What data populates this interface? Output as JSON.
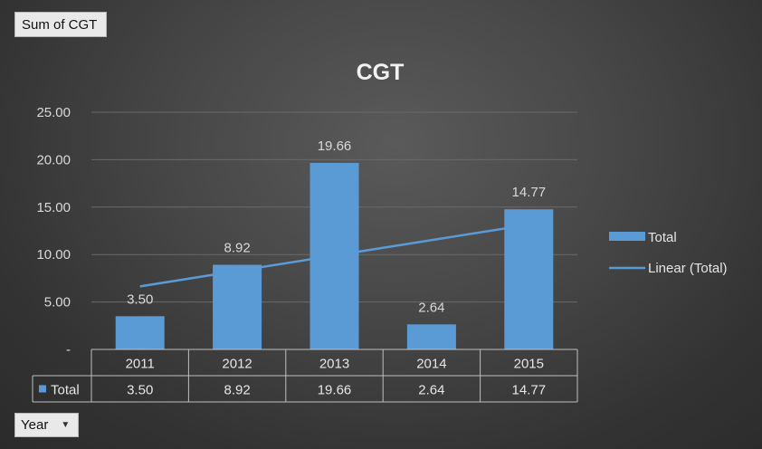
{
  "pivot_fields": {
    "value_field": "Sum of CGT",
    "axis_field": "Year"
  },
  "colors": {
    "bar": "#5b9bd5",
    "trend": "#5b9bd5",
    "grid": "#6a6a6a",
    "text": "#d9d9d9"
  },
  "chart_data": {
    "type": "bar",
    "title": "CGT",
    "categories": [
      "2011",
      "2012",
      "2013",
      "2014",
      "2015"
    ],
    "series": [
      {
        "name": "Total",
        "values": [
          3.5,
          8.92,
          19.66,
          2.64,
          14.77
        ]
      }
    ],
    "data_labels": [
      "3.50",
      "8.92",
      "19.66",
      "2.64",
      "14.77"
    ],
    "trendline": {
      "name": "Linear (Total)",
      "type": "linear",
      "of_series": "Total"
    },
    "y_ticks": [
      "-",
      "5.00",
      "10.00",
      "15.00",
      "20.00",
      "25.00"
    ],
    "ylim": [
      0,
      25
    ],
    "grid": true,
    "legend_position": "right",
    "data_table": {
      "row_label": "Total",
      "values": [
        "3.50",
        "8.92",
        "19.66",
        "2.64",
        "14.77"
      ]
    }
  }
}
